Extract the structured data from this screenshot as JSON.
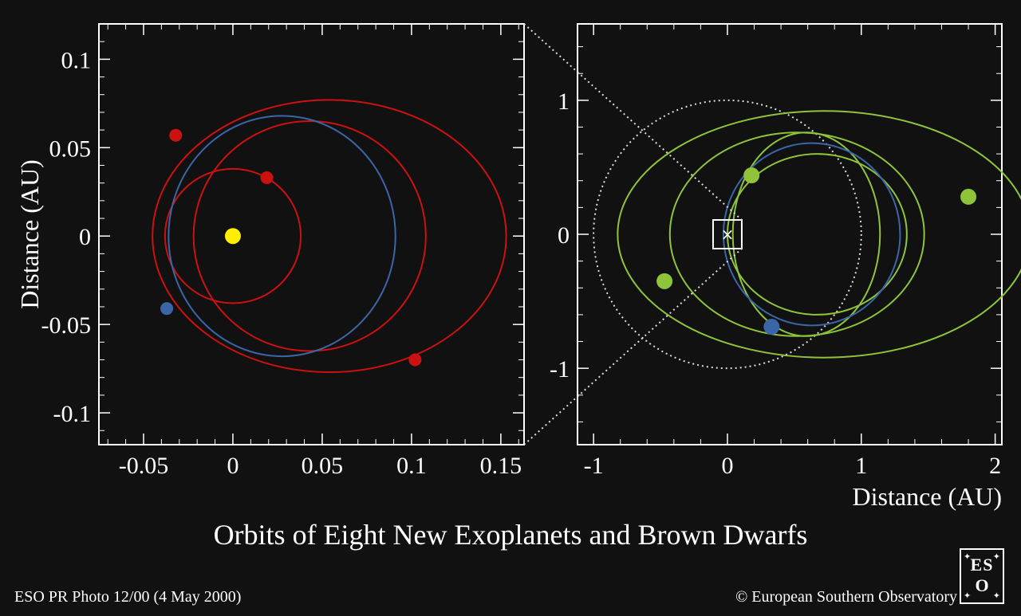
{
  "chart_data": [
    {
      "type": "scatter",
      "panel": "left",
      "xlabel": "",
      "ylabel": "Distance (AU)",
      "xlim": [
        -0.075,
        0.163
      ],
      "ylim": [
        -0.118,
        0.12
      ],
      "xticks": [
        -0.05,
        0,
        0.05,
        0.1,
        0.15
      ],
      "xtick_labels": [
        "-0.05",
        "0",
        "0.05",
        "0.1",
        "0.15"
      ],
      "yticks": [
        -0.1,
        -0.05,
        0,
        0.05,
        0.1
      ],
      "ytick_labels": [
        "-0.1",
        "-0.05",
        "0",
        "0.05",
        "0.1"
      ],
      "grid": false,
      "star": {
        "x": 0,
        "y": 0,
        "color": "#ffee00"
      },
      "orbits": [
        {
          "cx": 0,
          "cy": 0,
          "rx": 0.038,
          "ry": 0.038,
          "color": "#cc1111",
          "style": "solid"
        },
        {
          "cx": 0.043,
          "cy": 0,
          "rx": 0.065,
          "ry": 0.065,
          "color": "#cc1111",
          "style": "solid"
        },
        {
          "cx": 0.054,
          "cy": 0,
          "rx": 0.099,
          "ry": 0.077,
          "color": "#cc1111",
          "style": "solid"
        },
        {
          "cx": 0.0275,
          "cy": 0,
          "rx": 0.0635,
          "ry": 0.068,
          "color": "#3a66a8",
          "style": "solid"
        }
      ],
      "points": [
        {
          "x": 0.019,
          "y": 0.033,
          "color": "#cc1111"
        },
        {
          "x": -0.032,
          "y": 0.057,
          "color": "#cc1111"
        },
        {
          "x": 0.102,
          "y": -0.07,
          "color": "#cc1111"
        },
        {
          "x": -0.037,
          "y": -0.041,
          "color": "#3a66a8"
        }
      ]
    },
    {
      "type": "scatter",
      "panel": "right",
      "xlabel": "Distance (AU)",
      "ylabel": "",
      "xlim": [
        -1.12,
        2.05
      ],
      "ylim": [
        -1.57,
        1.57
      ],
      "xticks": [
        -1,
        0,
        1,
        2
      ],
      "xtick_labels": [
        "-1",
        "0",
        "1",
        "2"
      ],
      "yticks": [
        -1,
        0,
        1
      ],
      "ytick_labels": [
        "-1",
        "0",
        "1"
      ],
      "grid": false,
      "center_marker": {
        "x": 0,
        "y": 0,
        "symbol": "×"
      },
      "orbits": [
        {
          "cx": 0,
          "cy": 0,
          "rx": 1.0,
          "ry": 1.0,
          "color": "#dddddd",
          "style": "dotted"
        },
        {
          "cx": 0.67,
          "cy": 0,
          "rx": 0.67,
          "ry": 0.6,
          "color": "#8fc43a",
          "style": "solid"
        },
        {
          "cx": 0.59,
          "cy": 0,
          "rx": 0.55,
          "ry": 0.76,
          "color": "#8fc43a",
          "style": "solid"
        },
        {
          "cx": 0.72,
          "cy": 0,
          "rx": 1.54,
          "ry": 0.92,
          "color": "#8fc43a",
          "style": "solid"
        },
        {
          "cx": 0.52,
          "cy": 0,
          "rx": 0.95,
          "ry": 0.76,
          "color": "#8fc43a",
          "style": "solid"
        },
        {
          "cx": 0.63,
          "cy": 0,
          "rx": 0.66,
          "ry": 0.68,
          "color": "#3a66a8",
          "style": "solid"
        }
      ],
      "points": [
        {
          "x": 0.18,
          "y": 0.44,
          "color": "#8fc43a"
        },
        {
          "x": 1.8,
          "y": 0.28,
          "color": "#8fc43a"
        },
        {
          "x": -0.47,
          "y": -0.35,
          "color": "#8fc43a"
        },
        {
          "x": 0.33,
          "y": -0.69,
          "color": "#3a66a8"
        }
      ]
    }
  ],
  "title": "Orbits of Eight New Exoplanets and Brown Dwarfs",
  "footer": {
    "credit_left": "ESO PR Photo 12/00 (4 May 2000)",
    "credit_right": "© European Southern Observatory"
  },
  "logo": {
    "text_top": "ES",
    "text_bottom": "O"
  }
}
